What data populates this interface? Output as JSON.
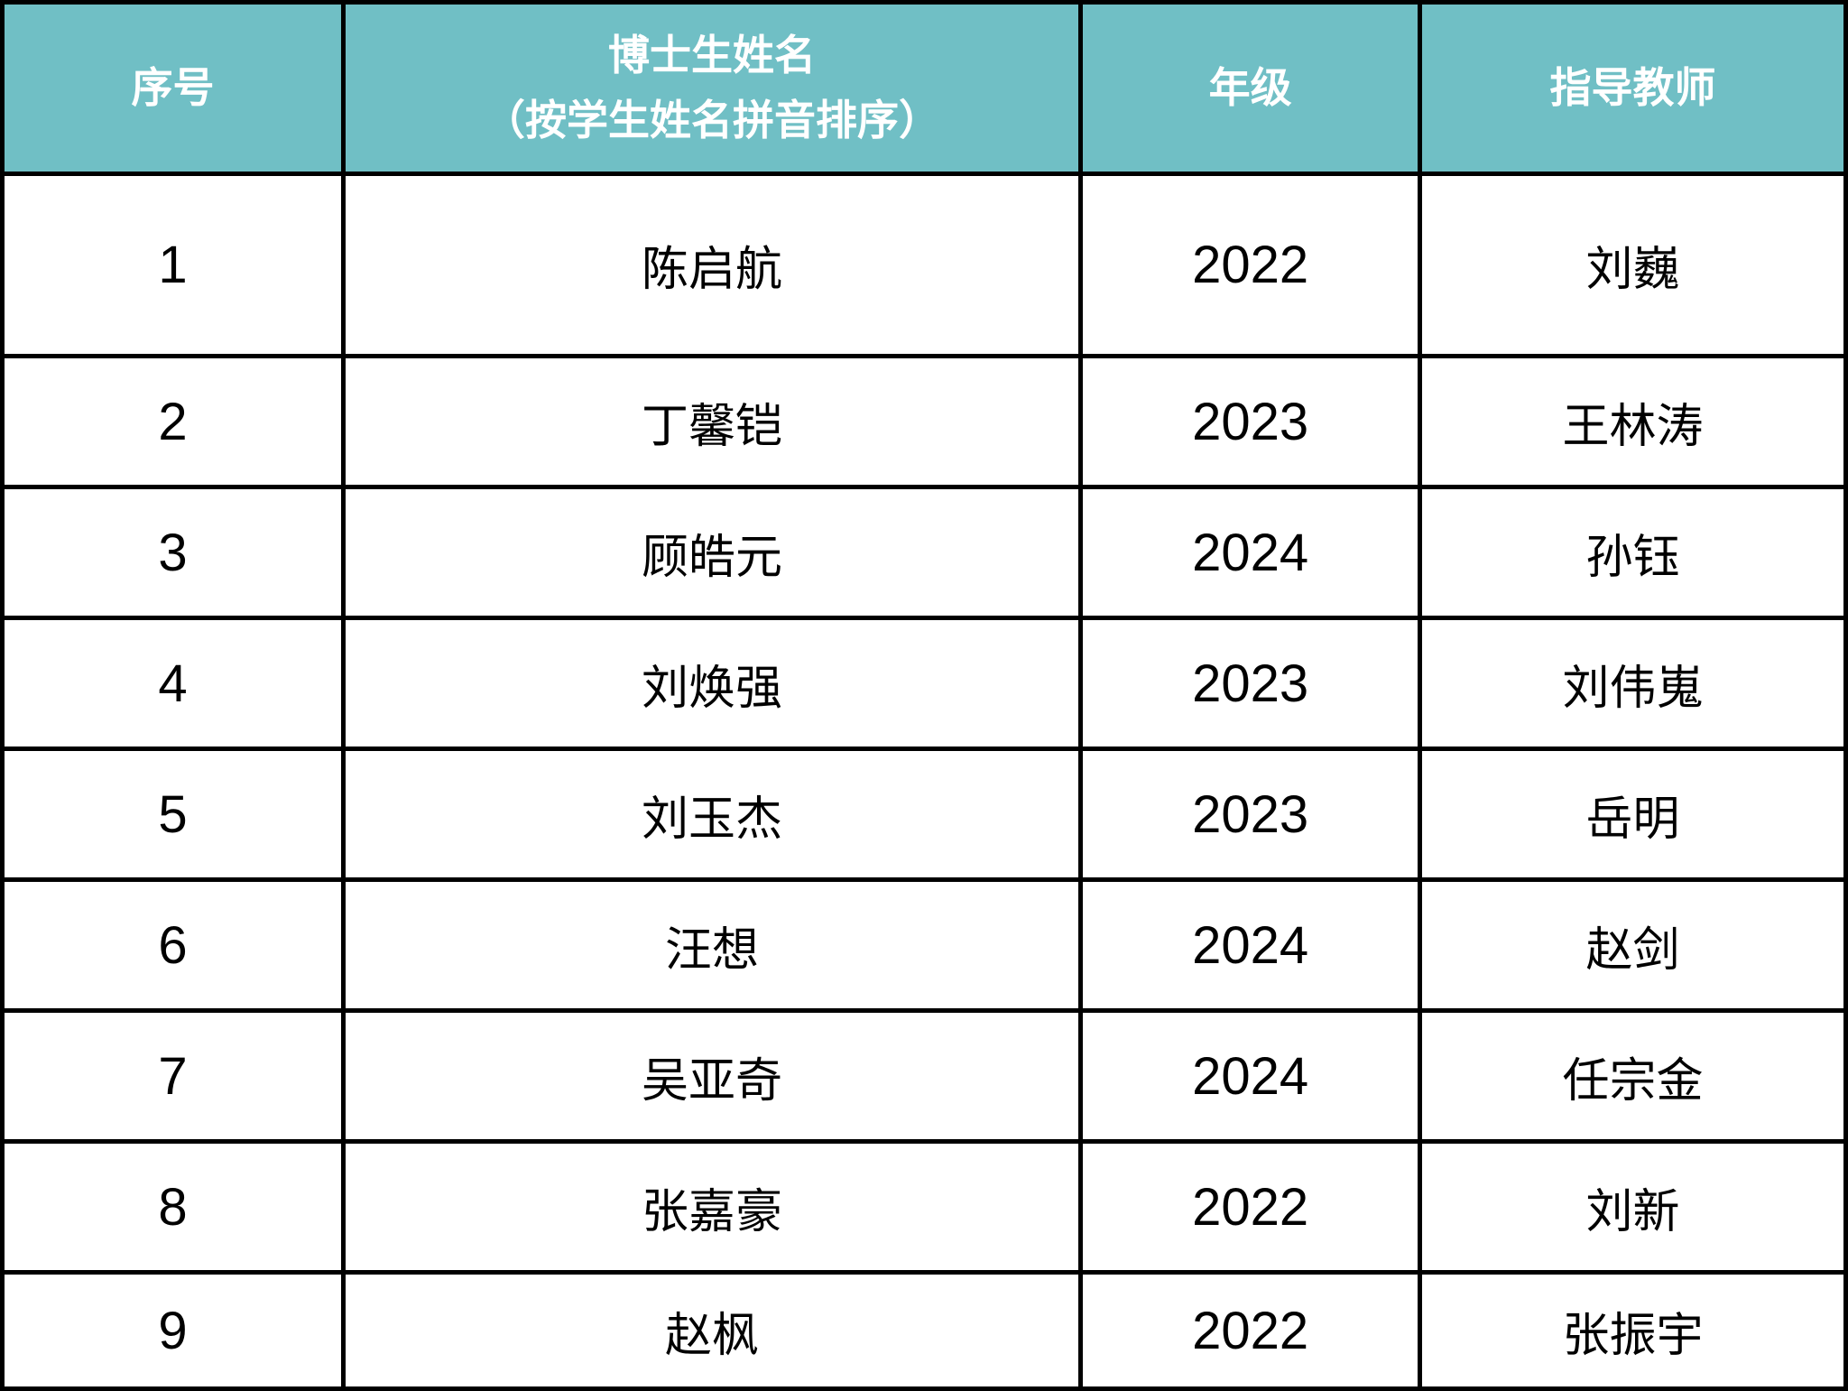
{
  "table": {
    "style": {
      "header_bg": "#70bfc5",
      "header_text_color": "#ffffff",
      "border_color": "#000000",
      "body_bg": "#ffffff",
      "body_text_color": "#000000"
    },
    "header": {
      "col_index": "序号",
      "col_name_line1": "博士生姓名",
      "col_name_line2": "（按学生姓名拼音排序）",
      "col_grade": "年级",
      "col_advisor": "指导教师"
    },
    "rows": [
      {
        "index": "1",
        "name": "陈启航",
        "grade": "2022",
        "advisor": "刘巍"
      },
      {
        "index": "2",
        "name": "丁馨铠",
        "grade": "2023",
        "advisor": "王林涛"
      },
      {
        "index": "3",
        "name": "顾皓元",
        "grade": "2024",
        "advisor": "孙钰"
      },
      {
        "index": "4",
        "name": "刘焕强",
        "grade": "2023",
        "advisor": "刘伟嵬"
      },
      {
        "index": "5",
        "name": "刘玉杰",
        "grade": "2023",
        "advisor": "岳明"
      },
      {
        "index": "6",
        "name": "汪想",
        "grade": "2024",
        "advisor": "赵剑"
      },
      {
        "index": "7",
        "name": "吴亚奇",
        "grade": "2024",
        "advisor": "任宗金"
      },
      {
        "index": "8",
        "name": "张嘉豪",
        "grade": "2022",
        "advisor": "刘新"
      },
      {
        "index": "9",
        "name": "赵枫",
        "grade": "2022",
        "advisor": "张振宇"
      }
    ]
  }
}
